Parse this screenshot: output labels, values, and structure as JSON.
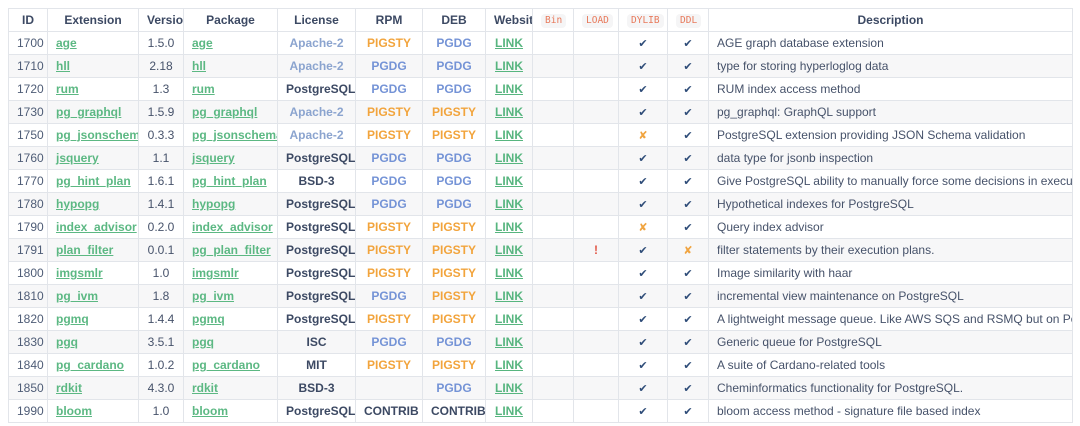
{
  "colors": {
    "pigsty_orange": "#F2A43C",
    "pgdg_blue": "#7493D6",
    "link_green": "#5CB883",
    "check_navy": "#2E4C78",
    "cross_orange": "#F0A440",
    "warn_red": "#E25A4A",
    "header_navy": "#3C4963",
    "apache_license_blue": "#8BA4CF",
    "code_header_orange": "#E8795A"
  },
  "table": {
    "columns": [
      {
        "key": "id",
        "label": "ID",
        "code": false
      },
      {
        "key": "extension",
        "label": "Extension",
        "code": false
      },
      {
        "key": "version",
        "label": "Version",
        "code": false
      },
      {
        "key": "package",
        "label": "Package",
        "code": false
      },
      {
        "key": "license",
        "label": "License",
        "code": false
      },
      {
        "key": "rpm",
        "label": "RPM",
        "code": false
      },
      {
        "key": "deb",
        "label": "DEB",
        "code": false
      },
      {
        "key": "website",
        "label": "Website",
        "code": false
      },
      {
        "key": "bin",
        "label": "Bin",
        "code": true
      },
      {
        "key": "load",
        "label": "LOAD",
        "code": true
      },
      {
        "key": "dylib",
        "label": "DYLIB",
        "code": true
      },
      {
        "key": "ddl",
        "label": "DDL",
        "code": true
      },
      {
        "key": "description",
        "label": "Description",
        "code": false
      }
    ],
    "rows": [
      {
        "id": "1700",
        "extension": "age",
        "version": "1.5.0",
        "package": "age",
        "license": "Apache-2",
        "rpm": "PIGSTY",
        "deb": "PGDG",
        "website": "LINK",
        "bin": "",
        "load": "",
        "dylib": "✔",
        "ddl": "✔",
        "description": "AGE graph database extension"
      },
      {
        "id": "1710",
        "extension": "hll",
        "version": "2.18",
        "package": "hll",
        "license": "Apache-2",
        "rpm": "PGDG",
        "deb": "PGDG",
        "website": "LINK",
        "bin": "",
        "load": "",
        "dylib": "✔",
        "ddl": "✔",
        "description": "type for storing hyperloglog data"
      },
      {
        "id": "1720",
        "extension": "rum",
        "version": "1.3",
        "package": "rum",
        "license": "PostgreSQL",
        "rpm": "PGDG",
        "deb": "PGDG",
        "website": "LINK",
        "bin": "",
        "load": "",
        "dylib": "✔",
        "ddl": "✔",
        "description": "RUM index access method"
      },
      {
        "id": "1730",
        "extension": "pg_graphql",
        "version": "1.5.9",
        "package": "pg_graphql",
        "license": "Apache-2",
        "rpm": "PIGSTY",
        "deb": "PIGSTY",
        "website": "LINK",
        "bin": "",
        "load": "",
        "dylib": "✔",
        "ddl": "✔",
        "description": "pg_graphql: GraphQL support"
      },
      {
        "id": "1750",
        "extension": "pg_jsonschema",
        "version": "0.3.3",
        "package": "pg_jsonschema",
        "license": "Apache-2",
        "rpm": "PIGSTY",
        "deb": "PIGSTY",
        "website": "LINK",
        "bin": "",
        "load": "",
        "dylib": "✘",
        "ddl": "✔",
        "description": "PostgreSQL extension providing JSON Schema validation"
      },
      {
        "id": "1760",
        "extension": "jsquery",
        "version": "1.1",
        "package": "jsquery",
        "license": "PostgreSQL",
        "rpm": "PGDG",
        "deb": "PGDG",
        "website": "LINK",
        "bin": "",
        "load": "",
        "dylib": "✔",
        "ddl": "✔",
        "description": "data type for jsonb inspection"
      },
      {
        "id": "1770",
        "extension": "pg_hint_plan",
        "version": "1.6.1",
        "package": "pg_hint_plan",
        "license": "BSD-3",
        "rpm": "PGDG",
        "deb": "PGDG",
        "website": "LINK",
        "bin": "",
        "load": "",
        "dylib": "✔",
        "ddl": "✔",
        "description": "Give PostgreSQL ability to manually force some decisions in execution plans."
      },
      {
        "id": "1780",
        "extension": "hypopg",
        "version": "1.4.1",
        "package": "hypopg",
        "license": "PostgreSQL",
        "rpm": "PGDG",
        "deb": "PGDG",
        "website": "LINK",
        "bin": "",
        "load": "",
        "dylib": "✔",
        "ddl": "✔",
        "description": "Hypothetical indexes for PostgreSQL"
      },
      {
        "id": "1790",
        "extension": "index_advisor",
        "version": "0.2.0",
        "package": "index_advisor",
        "license": "PostgreSQL",
        "rpm": "PIGSTY",
        "deb": "PIGSTY",
        "website": "LINK",
        "bin": "",
        "load": "",
        "dylib": "✘",
        "ddl": "✔",
        "description": "Query index advisor"
      },
      {
        "id": "1791",
        "extension": "plan_filter",
        "version": "0.0.1",
        "package": "pg_plan_filter",
        "license": "PostgreSQL",
        "rpm": "PIGSTY",
        "deb": "PIGSTY",
        "website": "LINK",
        "bin": "",
        "load": "!",
        "dylib": "✔",
        "ddl": "✘",
        "description": "filter statements by their execution plans."
      },
      {
        "id": "1800",
        "extension": "imgsmlr",
        "version": "1.0",
        "package": "imgsmlr",
        "license": "PostgreSQL",
        "rpm": "PIGSTY",
        "deb": "PIGSTY",
        "website": "LINK",
        "bin": "",
        "load": "",
        "dylib": "✔",
        "ddl": "✔",
        "description": "Image similarity with haar"
      },
      {
        "id": "1810",
        "extension": "pg_ivm",
        "version": "1.8",
        "package": "pg_ivm",
        "license": "PostgreSQL",
        "rpm": "PGDG",
        "deb": "PIGSTY",
        "website": "LINK",
        "bin": "",
        "load": "",
        "dylib": "✔",
        "ddl": "✔",
        "description": "incremental view maintenance on PostgreSQL"
      },
      {
        "id": "1820",
        "extension": "pgmq",
        "version": "1.4.4",
        "package": "pgmq",
        "license": "PostgreSQL",
        "rpm": "PIGSTY",
        "deb": "PIGSTY",
        "website": "LINK",
        "bin": "",
        "load": "",
        "dylib": "✔",
        "ddl": "✔",
        "description": "A lightweight message queue. Like AWS SQS and RSMQ but on Postgres."
      },
      {
        "id": "1830",
        "extension": "pgq",
        "version": "3.5.1",
        "package": "pgq",
        "license": "ISC",
        "rpm": "PGDG",
        "deb": "PGDG",
        "website": "LINK",
        "bin": "",
        "load": "",
        "dylib": "✔",
        "ddl": "✔",
        "description": "Generic queue for PostgreSQL"
      },
      {
        "id": "1840",
        "extension": "pg_cardano",
        "version": "1.0.2",
        "package": "pg_cardano",
        "license": "MIT",
        "rpm": "PIGSTY",
        "deb": "PIGSTY",
        "website": "LINK",
        "bin": "",
        "load": "",
        "dylib": "✔",
        "ddl": "✔",
        "description": "A suite of Cardano-related tools"
      },
      {
        "id": "1850",
        "extension": "rdkit",
        "version": "4.3.0",
        "package": "rdkit",
        "license": "BSD-3",
        "rpm": "",
        "deb": "PGDG",
        "website": "LINK",
        "bin": "",
        "load": "",
        "dylib": "✔",
        "ddl": "✔",
        "description": "Cheminformatics functionality for PostgreSQL."
      },
      {
        "id": "1990",
        "extension": "bloom",
        "version": "1.0",
        "package": "bloom",
        "license": "PostgreSQL",
        "rpm": "CONTRIB",
        "deb": "CONTRIB",
        "website": "LINK",
        "bin": "",
        "load": "",
        "dylib": "✔",
        "ddl": "✔",
        "description": "bloom access method - signature file based index"
      }
    ]
  }
}
